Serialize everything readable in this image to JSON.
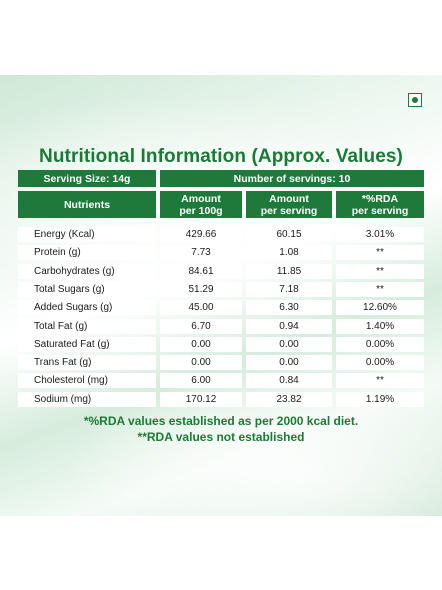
{
  "title": "Nutritional Information (Approx. Values)",
  "serving_size": "Serving Size: 14g",
  "number_of_servings": "Number of servings: 10",
  "headers": [
    "Nutrients",
    "Amount\nper 100g",
    "Amount\nper serving",
    "*%RDA\nper serving"
  ],
  "rows": [
    [
      "Energy (Kcal)",
      "429.66",
      "60.15",
      "3.01%"
    ],
    [
      "Protein (g)",
      "7.73",
      "1.08",
      "**"
    ],
    [
      "Carbohydrates (g)",
      "84.61",
      "11.85",
      "**"
    ],
    [
      "Total Sugars (g)",
      "51.29",
      "7.18",
      "**"
    ],
    [
      "Added Sugars (g)",
      "45.00",
      "6.30",
      "12.60%"
    ],
    [
      "Total Fat (g)",
      "6.70",
      "0.94",
      "1.40%"
    ],
    [
      "Saturated Fat (g)",
      "0.00",
      "0.00",
      "0.00%"
    ],
    [
      "Trans Fat (g)",
      "0.00",
      "0.00",
      "0.00%"
    ],
    [
      "Cholesterol (mg)",
      "6.00",
      "0.84",
      "**"
    ],
    [
      "Sodium (mg)",
      "170.12",
      "23.82",
      "1.19%"
    ]
  ],
  "footnotes": [
    "*%RDA values established as per 2000 kcal diet.",
    "**RDA values not established"
  ],
  "colors": {
    "brand_green": "#1e7a3a",
    "title_green": "#1b7a37"
  },
  "icons": {
    "veg_mark": "veg-symbol-icon"
  }
}
